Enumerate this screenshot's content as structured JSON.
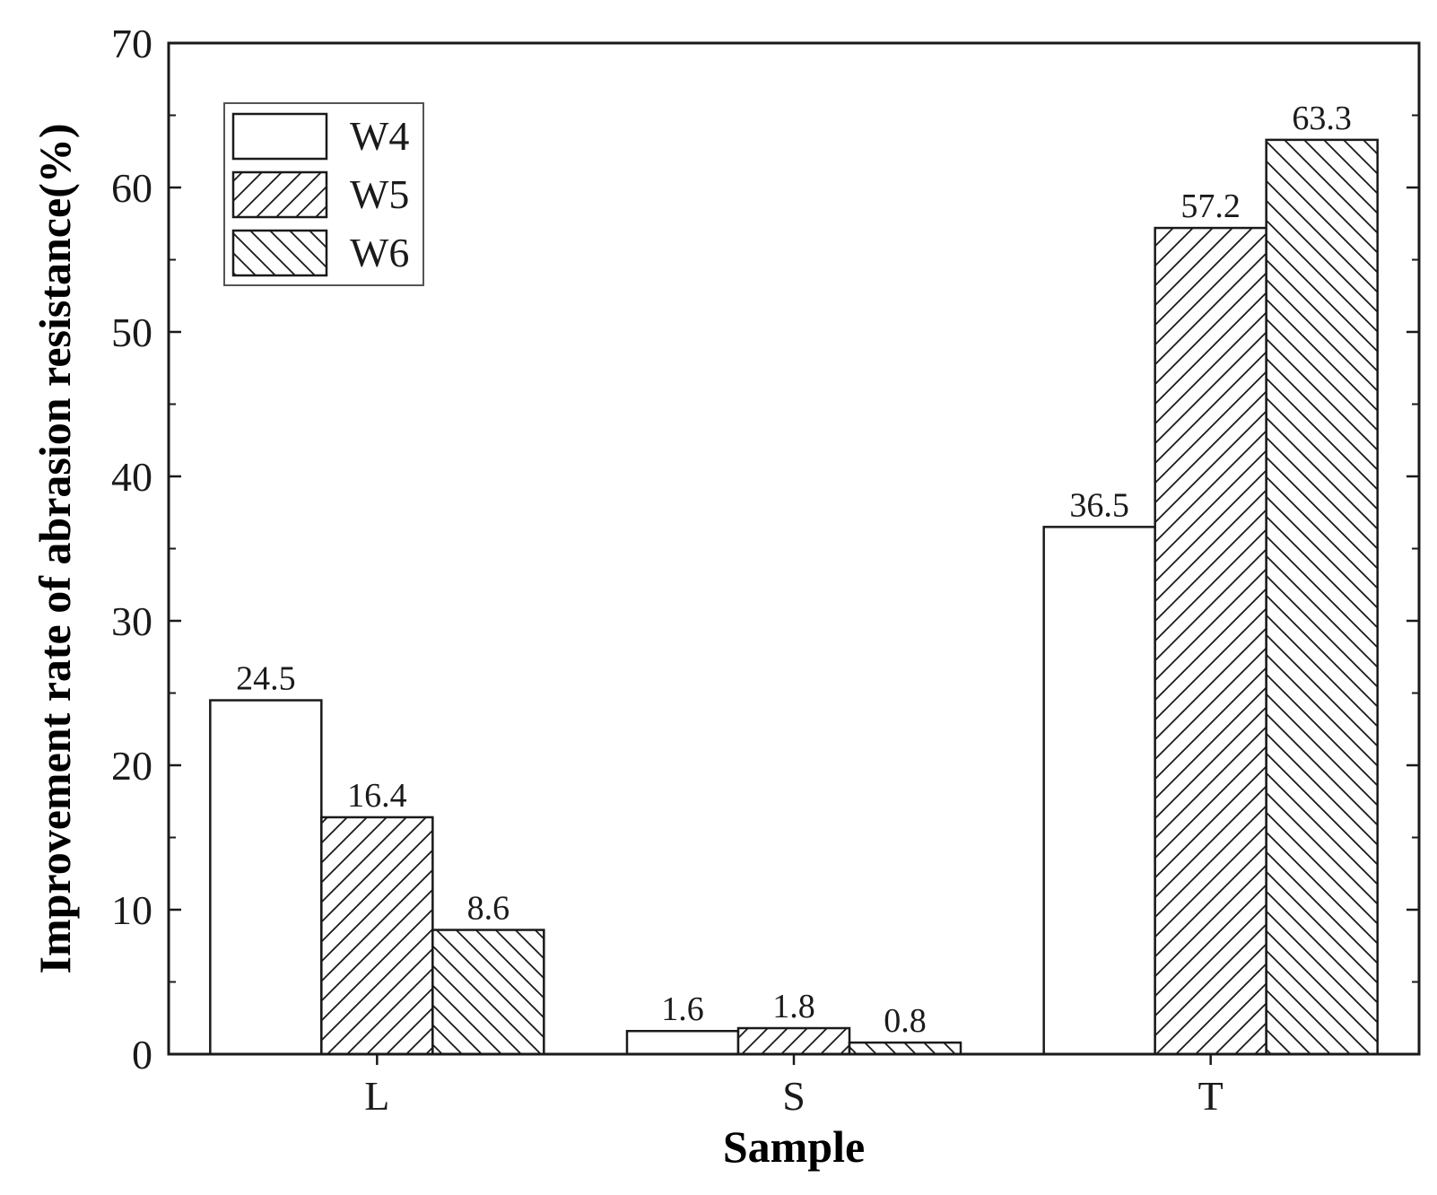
{
  "chart_data": {
    "type": "bar",
    "title": "",
    "xlabel": "Sample",
    "ylabel": "Improvement rate of abrasion resistance(%)",
    "categories": [
      "L",
      "S",
      "T"
    ],
    "series": [
      {
        "name": "W4",
        "values": [
          24.5,
          1.6,
          36.5
        ],
        "pattern": "none"
      },
      {
        "name": "W5",
        "values": [
          16.4,
          1.8,
          57.2
        ],
        "pattern": "forward-hatch"
      },
      {
        "name": "W6",
        "values": [
          8.6,
          0.8,
          63.3
        ],
        "pattern": "back-hatch"
      }
    ],
    "value_labels": [
      [
        "24.5",
        "1.6",
        "36.5"
      ],
      [
        "16.4",
        "1.8",
        "57.2"
      ],
      [
        "8.6",
        "0.8",
        "63.3"
      ]
    ],
    "ylim": [
      0,
      70
    ],
    "yticks": [
      0,
      10,
      20,
      30,
      40,
      50,
      60,
      70
    ],
    "ytick_labels": [
      "0",
      "10",
      "20",
      "30",
      "40",
      "50",
      "60",
      "70"
    ],
    "grid": false,
    "legend_position": "top-left",
    "colors": {
      "bar_fill": "#ffffff",
      "stroke": "#1a1a1a",
      "background": "#ffffff"
    }
  }
}
